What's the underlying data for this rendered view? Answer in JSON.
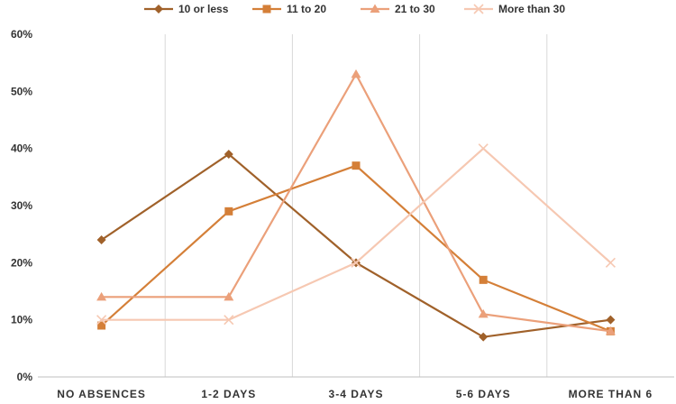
{
  "chart_data": {
    "type": "line",
    "title": "",
    "xlabel": "",
    "ylabel": "",
    "categories": [
      "NO ABSENCES",
      "1-2 DAYS",
      "3-4 DAYS",
      "5-6 DAYS",
      "MORE THAN 6"
    ],
    "ylim": [
      0,
      60
    ],
    "yticks": [
      0,
      10,
      20,
      30,
      40,
      50,
      60
    ],
    "ytick_labels": [
      "0%",
      "10%",
      "20%",
      "30%",
      "40%",
      "50%",
      "60%"
    ],
    "grid": "vertical",
    "legend_position": "top",
    "series": [
      {
        "name": "10 or less",
        "marker": "diamond",
        "color": "#a0612a",
        "values": [
          24,
          39,
          20,
          7,
          10
        ]
      },
      {
        "name": "11 to 20",
        "marker": "square",
        "color": "#d47f38",
        "values": [
          9,
          29,
          37,
          17,
          8
        ]
      },
      {
        "name": "21 to 30",
        "marker": "triangle",
        "color": "#eba07a",
        "values": [
          14,
          14,
          53,
          11,
          8
        ]
      },
      {
        "name": "More than 30",
        "marker": "x",
        "color": "#f6c8b2",
        "values": [
          10,
          10,
          20,
          40,
          20
        ]
      }
    ]
  }
}
